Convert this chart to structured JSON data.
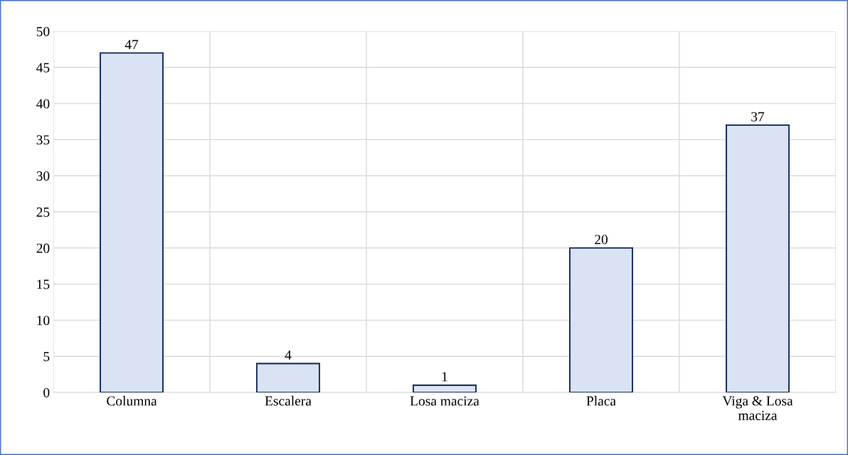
{
  "chart_data": {
    "type": "bar",
    "categories": [
      "Columna",
      "Escalera",
      "Losa maciza",
      "Placa",
      "Viga & Losa\nmaciza"
    ],
    "values": [
      47,
      4,
      1,
      20,
      37
    ],
    "color": "#dae3f3",
    "ylim": [
      0,
      50
    ],
    "yticks": [
      0,
      5,
      10,
      15,
      20,
      25,
      30,
      35,
      40,
      45,
      50
    ],
    "grid": true,
    "data_labels": true
  }
}
